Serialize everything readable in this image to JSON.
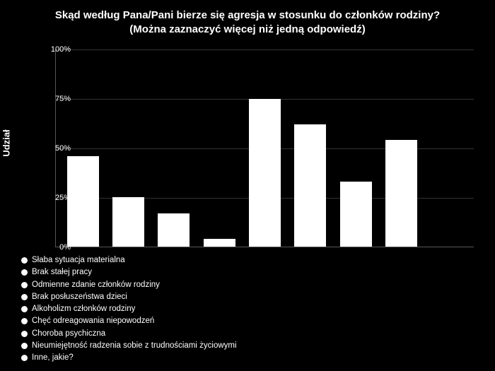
{
  "chart": {
    "type": "bar",
    "title_line1": "Skąd według Pana/Pani bierze się agresja w stosunku do członków rodziny?",
    "title_line2": "(Można zaznaczyć więcej niż jedną odpowiedź)",
    "title_fontsize": 15,
    "ylabel": "Udział",
    "ylabel_fontsize": 13,
    "background_color": "#000000",
    "bar_color": "#ffffff",
    "text_color": "#ffffff",
    "grid_color": "#333333",
    "axis_color": "#555555",
    "ylim": [
      0,
      100
    ],
    "yticks": [
      0,
      25,
      50,
      75,
      100
    ],
    "ytick_suffix": "%",
    "bar_width": 0.7,
    "categories": [
      "Słaba sytuacja materialna",
      "Brak stałej pracy",
      "Odmienne zdanie członków rodziny",
      "Brak posłuszeństwa dzieci",
      "Alkoholizm członków rodziny",
      "Chęć odreagowania niepowodzeń",
      "Choroba psychiczna",
      "Nieumiejętność radzenia sobie z trudnościami życiowymi",
      "Inne, jakie?"
    ],
    "values": [
      46,
      25,
      17,
      4,
      75,
      62,
      33,
      54,
      0
    ],
    "legend_marker_shape": "circle",
    "legend_marker_color": "#ffffff",
    "legend_fontsize": 11.5
  }
}
